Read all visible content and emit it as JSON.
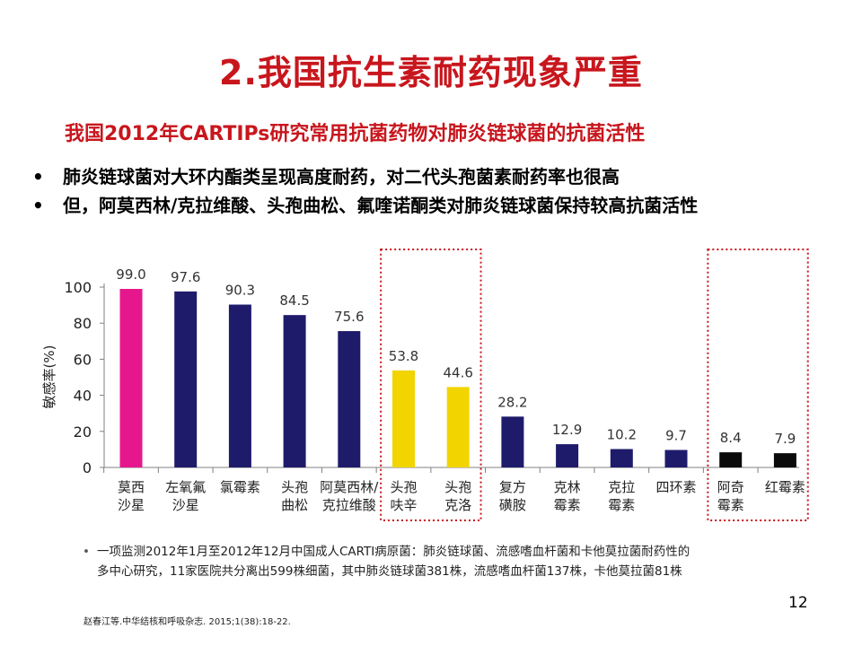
{
  "slide": {
    "title": "2.我国抗生素耐药现象严重",
    "subtitle": "我国2012年CARTIPs研究常用抗菌药物对肺炎链球菌的抗菌活性",
    "bullets": [
      "肺炎链球菌对大环内酯类呈现高度耐药，对二代头孢菌素耐药率也很高",
      "但，阿莫西林/克拉维酸、头孢曲松、氟喹诺酮类对肺炎链球菌保持较高抗菌活性"
    ],
    "bullet_symbol": "•",
    "note_symbol": "•",
    "note_line1": "一项监测2012年1月至2012年12月中国成人CARTI病原菌：肺炎链球菌、流感嗜血杆菌和卡他莫拉菌耐药性的",
    "note_line2": "多中心研究，11家医院共分离出599株细菌，其中肺炎链球菌381株，流感嗜血杆菌137株，卡他莫拉菌81株",
    "page_number": "12",
    "reference": "赵春江等.中华结核和呼吸杂志. 2015;1(38):18-22."
  },
  "colors": {
    "title": "#c8161d",
    "highlight_box": "#c8161d",
    "axis": "#808080"
  },
  "chart_data": {
    "type": "bar",
    "ylabel": "敏感率(%)",
    "ylim": [
      0,
      100
    ],
    "yticks": [
      0,
      20,
      40,
      60,
      80,
      100
    ],
    "grid": false,
    "categories": [
      [
        "莫西",
        "沙星"
      ],
      [
        "左氧氟",
        "沙星"
      ],
      [
        "氯霉素"
      ],
      [
        "头孢",
        "曲松"
      ],
      [
        "阿莫西林/",
        "克拉维酸"
      ],
      [
        "头孢",
        "呋辛"
      ],
      [
        "头孢",
        "克洛"
      ],
      [
        "复方",
        "磺胺"
      ],
      [
        "克林",
        "霉素"
      ],
      [
        "克拉",
        "霉素"
      ],
      [
        "四环素"
      ],
      [
        "阿奇",
        "霉素"
      ],
      [
        "红霉素"
      ]
    ],
    "values": [
      99.0,
      97.6,
      90.3,
      84.5,
      75.6,
      53.8,
      44.6,
      28.2,
      12.9,
      10.2,
      9.7,
      8.4,
      7.9
    ],
    "value_labels": [
      "99.0",
      "97.6",
      "90.3",
      "84.5",
      "75.6",
      "53.8",
      "44.6",
      "28.2",
      "12.9",
      "10.2",
      "9.7",
      "8.4",
      "7.9"
    ],
    "bar_colors": [
      "#e6178c",
      "#1f1b6b",
      "#1f1b6b",
      "#1f1b6b",
      "#1f1b6b",
      "#f2d400",
      "#f2d400",
      "#1f1b6b",
      "#1f1b6b",
      "#1f1b6b",
      "#1f1b6b",
      "#0a0a0a",
      "#0a0a0a"
    ],
    "highlight_groups": [
      [
        5,
        6
      ],
      [
        11,
        12
      ]
    ]
  }
}
